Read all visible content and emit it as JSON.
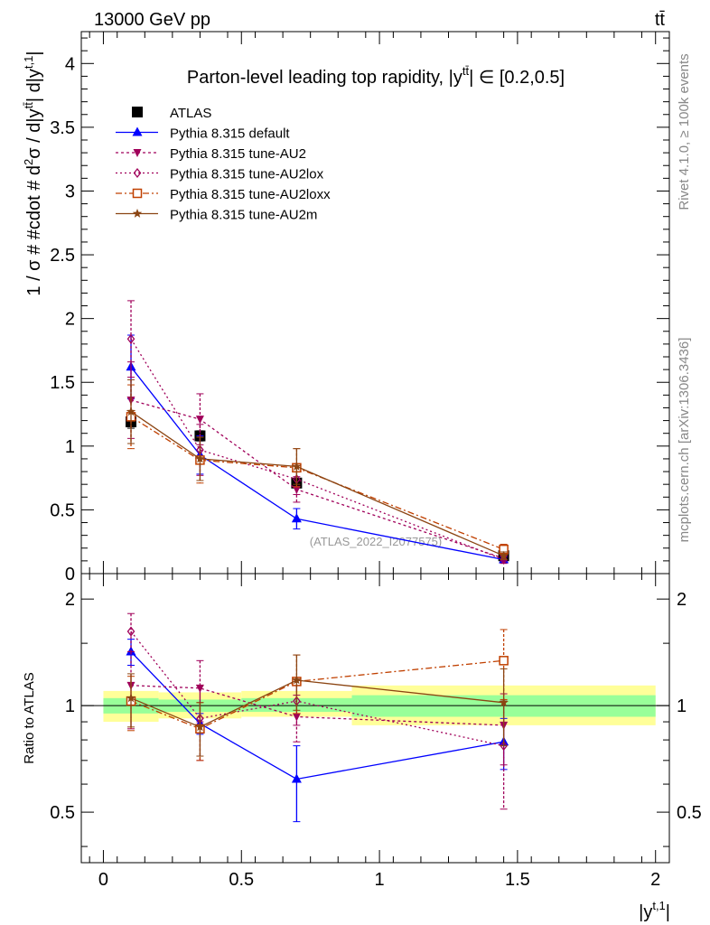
{
  "header": {
    "energy_label": "13000 GeV pp",
    "process_label": "tt̄",
    "rivet_label": "Rivet 4.1.0, ≥ 100k events",
    "mcplots_label": "mcplots.cern.ch [arXiv:1306.3436]",
    "analysis_id": "(ATLAS_2022_I2077575)"
  },
  "chart_data": [
    {
      "type": "line",
      "title": "Parton-level leading top rapidity, |y̅t̅| ∈ [0.2,0.5]",
      "title_prefix": "Parton-level leading top rapidity, |y",
      "title_sup": "tt̄",
      "title_suffix": "| ∈ [0.2,0.5]",
      "ylabel": "1 / σ # #cdot # d²σ / d|y^tt̄| d|y^t,1|",
      "ylabel_parts": [
        "1 / σ # #cdot # d",
        "2",
        "σ / d|y",
        "tt̄",
        "| d|y",
        "t,1",
        "|"
      ],
      "ylim": [
        0,
        4.25
      ],
      "yticks": [
        0,
        0.5,
        1,
        1.5,
        2,
        2.5,
        3,
        3.5,
        4
      ],
      "ytick_labels": [
        "0",
        "0.5",
        "1",
        "1.5",
        "2",
        "2.5",
        "3",
        "3.5",
        "4"
      ],
      "xlim": [
        -0.08,
        2.05
      ],
      "bin_edges": [
        0,
        0.2,
        0.5,
        0.9,
        2.0
      ],
      "x": [
        0.1,
        0.35,
        0.7,
        1.45
      ],
      "legend_position": "top-left",
      "series": [
        {
          "name": "ATLAS",
          "color": "#000000",
          "marker": "square",
          "dash": "none",
          "values": [
            1.19,
            1.08,
            0.71,
            0.14
          ],
          "err": [
            0.05,
            0.04,
            0.03,
            0.01
          ]
        },
        {
          "name": "Pythia 8.315 default",
          "color": "#0000ff",
          "marker": "triangle-up",
          "dash": "solid",
          "values": [
            1.62,
            0.93,
            0.43,
            0.11
          ],
          "err": [
            0.25,
            0.15,
            0.08,
            0.02
          ]
        },
        {
          "name": "Pythia 8.315 tune-AU2",
          "color": "#a0005a",
          "marker": "triangle-down",
          "dash": "3,3",
          "values": [
            1.36,
            1.21,
            0.66,
            0.12
          ],
          "err": [
            0.3,
            0.2,
            0.1,
            0.02
          ]
        },
        {
          "name": "Pythia 8.315 tune-AU2lox",
          "color": "#a0005a",
          "marker": "diamond",
          "dash": "2,3",
          "values": [
            1.84,
            0.97,
            0.74,
            0.11
          ],
          "err": [
            0.3,
            0.2,
            0.12,
            0.03
          ]
        },
        {
          "name": "Pythia 8.315 tune-AU2loxx",
          "color": "#c04000",
          "marker": "open-square",
          "dash": "7,3,2,3",
          "values": [
            1.23,
            0.89,
            0.83,
            0.19
          ],
          "err": [
            0.25,
            0.18,
            0.15,
            0.04
          ]
        },
        {
          "name": "Pythia 8.315 tune-AU2m",
          "color": "#8b4513",
          "marker": "star",
          "dash": "solid",
          "values": [
            1.27,
            0.9,
            0.84,
            0.14
          ],
          "err": [
            0.25,
            0.17,
            0.14,
            0.03
          ]
        }
      ]
    },
    {
      "type": "line",
      "title": "",
      "ylabel": "Ratio to ATLAS",
      "xlabel": "|y^t,1|",
      "xlabel_main": "|y",
      "xlabel_sup": "t,1",
      "xlabel_end": "|",
      "ylim": [
        0.36,
        2.36
      ],
      "log_y": true,
      "yticks": [
        0.5,
        1,
        2
      ],
      "ytick_labels": [
        "0.5",
        "1",
        "2"
      ],
      "xlim": [
        -0.08,
        2.05
      ],
      "xticks": [
        0,
        0.5,
        1,
        1.5,
        2
      ],
      "xtick_labels": [
        "0",
        "0.5",
        "1",
        "1.5",
        "2"
      ],
      "x": [
        0.1,
        0.35,
        0.7,
        1.45
      ],
      "band_inner": [
        [
          0.95,
          1.05
        ],
        [
          0.96,
          1.04
        ],
        [
          0.96,
          1.05
        ],
        [
          0.93,
          1.07
        ]
      ],
      "band_outer": [
        [
          0.9,
          1.1
        ],
        [
          0.92,
          1.09
        ],
        [
          0.93,
          1.1
        ],
        [
          0.88,
          1.14
        ]
      ],
      "series": [
        {
          "name": "Pythia 8.315 default",
          "values": [
            1.42,
            0.89,
            0.62,
            0.79
          ],
          "err": [
            0.12,
            0.06,
            0.15,
            0.13
          ]
        },
        {
          "name": "Pythia 8.315 tune-AU2",
          "values": [
            1.14,
            1.12,
            0.93,
            0.88
          ],
          "err": [
            0.28,
            0.22,
            0.14,
            0.2
          ]
        },
        {
          "name": "Pythia 8.315 tune-AU2lox",
          "values": [
            1.62,
            0.92,
            1.03,
            0.77
          ],
          "err": [
            0.2,
            0.22,
            0.15,
            0.26
          ]
        },
        {
          "name": "Pythia 8.315 tune-AU2loxx",
          "values": [
            1.03,
            0.86,
            1.17,
            1.34
          ],
          "err": [
            0.18,
            0.16,
            0.22,
            0.3
          ]
        },
        {
          "name": "Pythia 8.315 tune-AU2m",
          "values": [
            1.05,
            0.87,
            1.18,
            1.02
          ],
          "err": [
            0.18,
            0.15,
            0.21,
            0.25
          ]
        }
      ]
    }
  ]
}
